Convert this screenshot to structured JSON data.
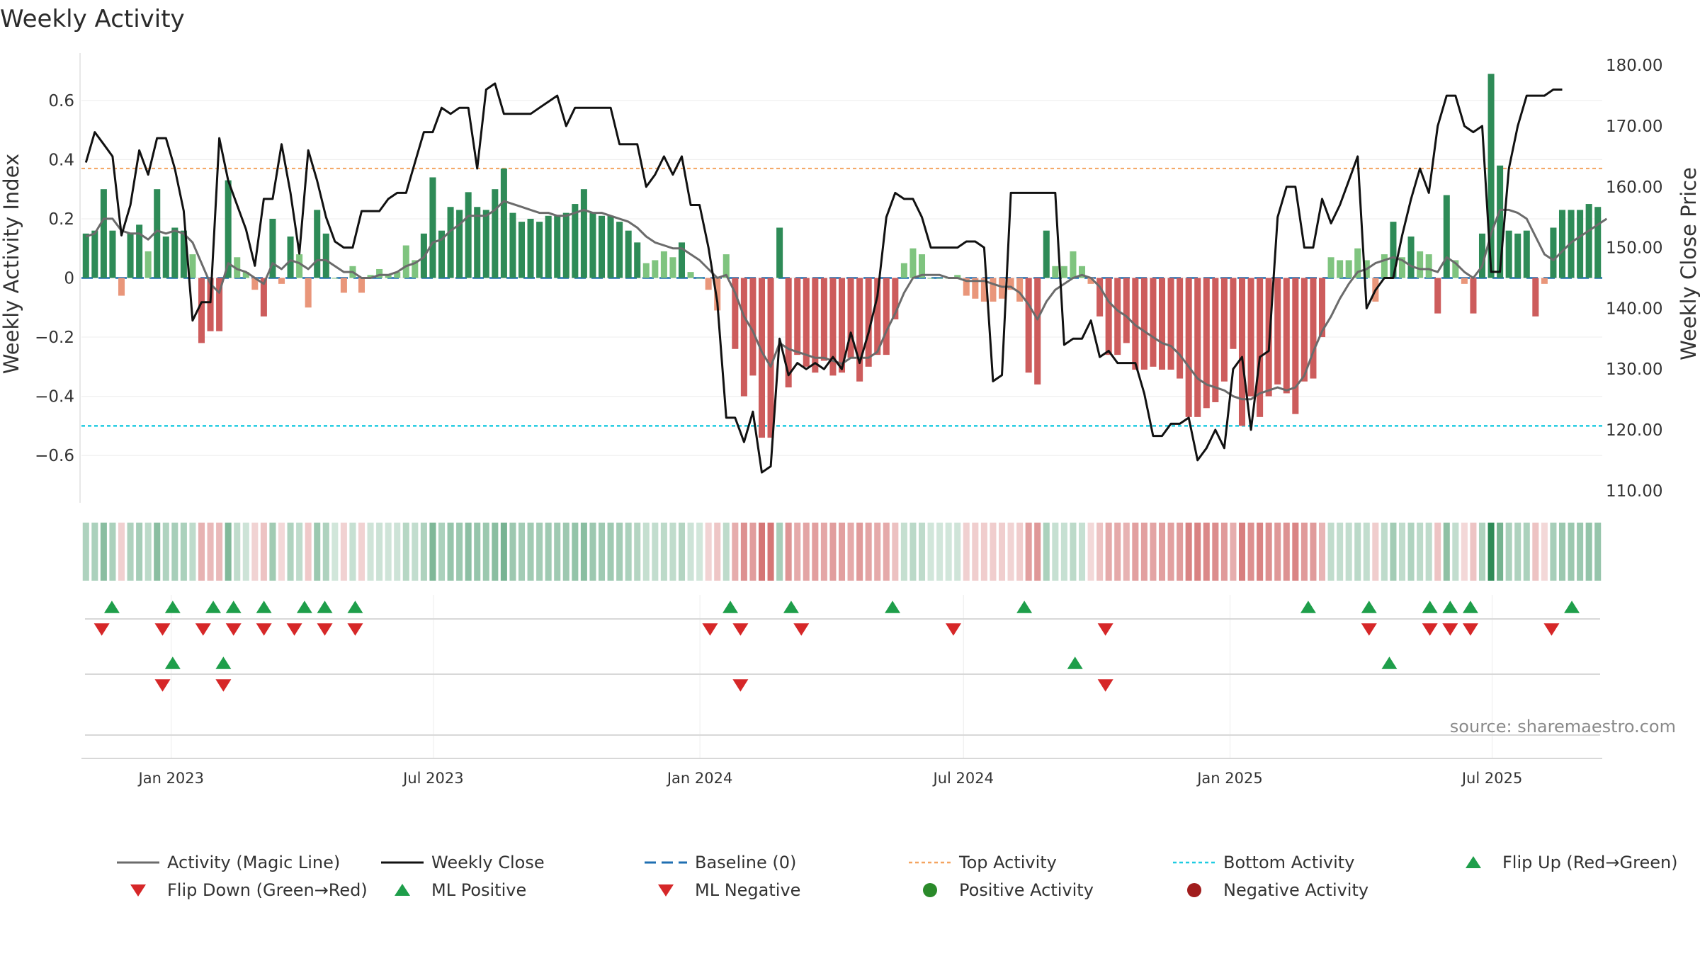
{
  "title": "Weekly Activity",
  "source": "source: sharemaestro.com",
  "colors": {
    "green_dark": "#2e8b57",
    "green_light": "#7fc47f",
    "red_dark": "#cd5c5c",
    "red_light": "#e9967a",
    "magic_line": "#6b6b6b",
    "close_line": "#111111",
    "baseline": "#1f6fb2",
    "top": "#f4a460",
    "bottom": "#1ecbe1",
    "marker_green": "#1e9e4a",
    "marker_red": "#d62728",
    "dot_green": "#2a8a2a",
    "dot_red": "#a11d1d"
  },
  "chart_data": {
    "type": "bar+line",
    "title": "Weekly Activity",
    "x": {
      "start": "2022-10-31",
      "end": "2025-09-15",
      "ticks": [
        {
          "label": "Jan 2023",
          "date": "2023-01-01"
        },
        {
          "label": "Jul 2023",
          "date": "2023-07-01"
        },
        {
          "label": "Jan 2024",
          "date": "2024-01-01"
        },
        {
          "label": "Jul 2024",
          "date": "2024-07-01"
        },
        {
          "label": "Jan 2025",
          "date": "2025-01-01"
        },
        {
          "label": "Jul 2025",
          "date": "2025-07-01"
        }
      ]
    },
    "y_left": {
      "label": "Weekly Activity Index",
      "range": [
        -0.76,
        0.76
      ],
      "ticks": [
        0.6,
        0.4,
        0.2,
        0,
        -0.2,
        -0.4,
        -0.6
      ],
      "tick_labels": [
        "0.6",
        "0.4",
        "0.2",
        "0",
        "−0.2",
        "−0.4",
        "−0.6"
      ]
    },
    "y_right": {
      "label": "Weekly Close Price",
      "range": [
        108,
        182
      ],
      "ticks": [
        180,
        170,
        160,
        150,
        140,
        130,
        120,
        110
      ],
      "tick_labels": [
        "180.00",
        "170.00",
        "160.00",
        "150.00",
        "140.00",
        "130.00",
        "120.00",
        "110.00"
      ]
    },
    "reference_lines": {
      "baseline": 0,
      "top_activity": 0.37,
      "bottom_activity": -0.5
    },
    "activity": [
      0.15,
      0.16,
      0.3,
      0.16,
      -0.06,
      0.15,
      0.18,
      0.09,
      0.3,
      0.14,
      0.17,
      0.16,
      0.08,
      -0.22,
      -0.18,
      -0.18,
      0.33,
      0.07,
      0.02,
      -0.04,
      -0.13,
      0.2,
      -0.02,
      0.14,
      0.08,
      -0.1,
      0.23,
      0.15,
      0.0,
      -0.05,
      0.04,
      -0.05,
      0.01,
      0.03,
      0.01,
      0.02,
      0.11,
      0.06,
      0.15,
      0.34,
      0.16,
      0.24,
      0.23,
      0.29,
      0.24,
      0.23,
      0.3,
      0.37,
      0.22,
      0.19,
      0.2,
      0.19,
      0.21,
      0.21,
      0.22,
      0.25,
      0.3,
      0.22,
      0.21,
      0.21,
      0.19,
      0.16,
      0.12,
      0.05,
      0.06,
      0.09,
      0.07,
      0.12,
      0.02,
      0.0,
      -0.04,
      -0.11,
      0.08,
      -0.24,
      -0.4,
      -0.33,
      -0.54,
      -0.54,
      0.17,
      -0.37,
      -0.26,
      -0.3,
      -0.32,
      -0.28,
      -0.33,
      -0.32,
      -0.27,
      -0.35,
      -0.3,
      -0.26,
      -0.26,
      -0.14,
      0.05,
      0.1,
      0.08,
      0.0,
      0.0,
      0.0,
      0.01,
      -0.06,
      -0.07,
      -0.08,
      -0.08,
      -0.07,
      -0.04,
      -0.08,
      -0.32,
      -0.36,
      0.16,
      0.04,
      0.04,
      0.09,
      0.04,
      -0.02,
      -0.13,
      -0.26,
      -0.26,
      -0.22,
      -0.31,
      -0.31,
      -0.3,
      -0.31,
      -0.31,
      -0.34,
      -0.47,
      -0.47,
      -0.44,
      -0.42,
      -0.35,
      -0.24,
      -0.5,
      -0.4,
      -0.47,
      -0.4,
      -0.36,
      -0.39,
      -0.46,
      -0.35,
      -0.34,
      -0.2,
      0.07,
      0.06,
      0.06,
      0.1,
      0.06,
      -0.08,
      0.08,
      0.19,
      0.07,
      0.14,
      0.09,
      0.08,
      -0.12,
      0.28,
      0.06,
      -0.02,
      -0.12,
      0.15,
      0.69,
      0.38,
      0.16,
      0.15,
      0.16,
      -0.13,
      -0.02,
      0.17,
      0.23,
      0.23,
      0.23,
      0.25,
      0.24
    ],
    "magic_line": [
      0.14,
      0.15,
      0.2,
      0.2,
      0.16,
      0.15,
      0.15,
      0.13,
      0.16,
      0.15,
      0.16,
      0.15,
      0.12,
      0.05,
      -0.02,
      -0.05,
      0.05,
      0.03,
      0.02,
      0.0,
      -0.02,
      0.05,
      0.03,
      0.06,
      0.05,
      0.03,
      0.06,
      0.06,
      0.04,
      0.02,
      0.02,
      0.0,
      0.0,
      0.01,
      0.01,
      0.02,
      0.04,
      0.05,
      0.07,
      0.12,
      0.13,
      0.16,
      0.18,
      0.21,
      0.21,
      0.21,
      0.23,
      0.26,
      0.25,
      0.24,
      0.23,
      0.22,
      0.22,
      0.21,
      0.21,
      0.22,
      0.23,
      0.22,
      0.22,
      0.21,
      0.2,
      0.19,
      0.17,
      0.14,
      0.12,
      0.11,
      0.1,
      0.1,
      0.08,
      0.06,
      0.03,
      0.0,
      0.01,
      -0.05,
      -0.13,
      -0.18,
      -0.25,
      -0.3,
      -0.22,
      -0.24,
      -0.25,
      -0.26,
      -0.27,
      -0.27,
      -0.28,
      -0.29,
      -0.27,
      -0.27,
      -0.27,
      -0.25,
      -0.18,
      -0.12,
      -0.05,
      0.0,
      0.01,
      0.01,
      0.01,
      0.0,
      0.0,
      -0.01,
      -0.01,
      -0.01,
      -0.02,
      -0.03,
      -0.03,
      -0.05,
      -0.09,
      -0.14,
      -0.08,
      -0.04,
      -0.02,
      0.0,
      0.01,
      0.0,
      -0.03,
      -0.08,
      -0.11,
      -0.13,
      -0.16,
      -0.18,
      -0.2,
      -0.22,
      -0.23,
      -0.26,
      -0.3,
      -0.34,
      -0.36,
      -0.37,
      -0.38,
      -0.4,
      -0.41,
      -0.41,
      -0.39,
      -0.38,
      -0.37,
      -0.38,
      -0.37,
      -0.33,
      -0.25,
      -0.18,
      -0.13,
      -0.07,
      -0.02,
      0.02,
      0.03,
      0.05,
      0.06,
      0.07,
      0.06,
      0.04,
      0.03,
      0.03,
      0.02,
      0.07,
      0.05,
      0.02,
      0.0,
      0.04,
      0.15,
      0.23,
      0.23,
      0.22,
      0.2,
      0.14,
      0.08,
      0.06,
      0.09,
      0.12,
      0.14,
      0.16,
      0.18,
      0.2
    ],
    "weekly_close": [
      164,
      169,
      167,
      165,
      152,
      157,
      166,
      162,
      168,
      168,
      163,
      156,
      138,
      141,
      141,
      168,
      161,
      157,
      153,
      147,
      158,
      158,
      167,
      159,
      149,
      166,
      161,
      155,
      151,
      150,
      150,
      156,
      156,
      156,
      158,
      159,
      159,
      164,
      169,
      169,
      173,
      172,
      173,
      173,
      163,
      176,
      177,
      172,
      172,
      172,
      172,
      173,
      174,
      175,
      170,
      173,
      173,
      173,
      173,
      173,
      167,
      167,
      167,
      160,
      162,
      165,
      162,
      165,
      157,
      157,
      150,
      141,
      122,
      122,
      118,
      123,
      113,
      114,
      135,
      129,
      131,
      130,
      131,
      130,
      132,
      130,
      136,
      131,
      136,
      142,
      155,
      159,
      158,
      158,
      155,
      150,
      150,
      150,
      150,
      151,
      151,
      150,
      128,
      129,
      159,
      159,
      159,
      159,
      159,
      159,
      134,
      135,
      135,
      138,
      132,
      133,
      131,
      131,
      131,
      126,
      119,
      119,
      121,
      121,
      122,
      115,
      117,
      120,
      117,
      130,
      132,
      120,
      132,
      133,
      155,
      160,
      160,
      150,
      150,
      158,
      154,
      157,
      161,
      165,
      140,
      143,
      145,
      145,
      152,
      158,
      163,
      159,
      170,
      175,
      175,
      170,
      169,
      170,
      146,
      146,
      163,
      170,
      175,
      175,
      175,
      176,
      176
    ],
    "activity_rows": [
      {
        "name": "Flip Up (Red→Green)",
        "dates": [
          "2022-11-21",
          "2023-01-02",
          "2023-01-30",
          "2023-02-13",
          "2023-03-06",
          "2023-04-03",
          "2023-04-17",
          "2023-05-08",
          "2024-01-22",
          "2024-03-04",
          "2024-05-13",
          "2024-08-12",
          "2025-02-24",
          "2025-04-07",
          "2025-05-19",
          "2025-06-02",
          "2025-06-16",
          "2025-08-25"
        ]
      },
      {
        "name": "Flip Down (Green→Red)",
        "dates": [
          "2022-11-14",
          "2022-12-26",
          "2023-01-23",
          "2023-02-13",
          "2023-03-06",
          "2023-03-27",
          "2023-04-17",
          "2023-05-08",
          "2024-01-08",
          "2024-01-29",
          "2024-03-11",
          "2024-06-24",
          "2024-10-07",
          "2025-04-07",
          "2025-05-19",
          "2025-06-02",
          "2025-06-16",
          "2025-08-11"
        ]
      },
      {
        "name": "ML Positive",
        "dates": [
          "2023-01-02",
          "2023-02-06",
          "2024-09-16",
          "2025-04-21"
        ]
      },
      {
        "name": "ML Negative",
        "dates": [
          "2022-12-26",
          "2023-02-06",
          "2024-01-29",
          "2024-10-07"
        ]
      }
    ],
    "legend": [
      {
        "label": "Activity (Magic Line)",
        "symbol": "line",
        "color": "#6b6b6b"
      },
      {
        "label": "Weekly Close",
        "symbol": "line",
        "color": "#111111"
      },
      {
        "label": "Baseline (0)",
        "symbol": "dash",
        "color": "#1f6fb2"
      },
      {
        "label": "Top Activity",
        "symbol": "dot-line",
        "color": "#f4a460"
      },
      {
        "label": "Bottom Activity",
        "symbol": "dot-line",
        "color": "#1ecbe1"
      },
      {
        "label": "Flip Up (Red→Green)",
        "symbol": "tri-up",
        "color": "#1e9e4a"
      },
      {
        "label": "Flip Down (Green→Red)",
        "symbol": "tri-down",
        "color": "#d62728"
      },
      {
        "label": "ML Positive",
        "symbol": "tri-up",
        "color": "#1e9e4a"
      },
      {
        "label": "ML Negative",
        "symbol": "tri-down",
        "color": "#d62728"
      },
      {
        "label": "Positive Activity",
        "symbol": "dot",
        "color": "#2a8a2a"
      },
      {
        "label": "Negative Activity",
        "symbol": "dot",
        "color": "#a11d1d"
      }
    ]
  }
}
